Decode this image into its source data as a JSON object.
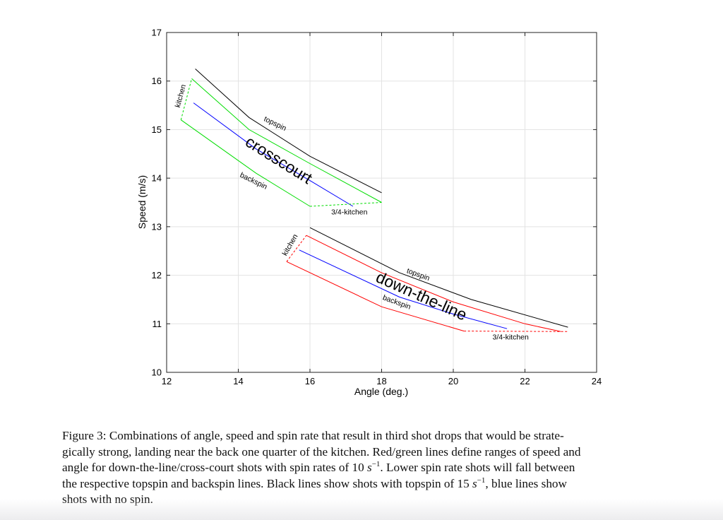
{
  "chart_data": {
    "type": "line",
    "title": "",
    "xlabel": "Angle (deg.)",
    "ylabel": "Speed (m/s)",
    "xlim": [
      12,
      24
    ],
    "ylim": [
      10,
      17
    ],
    "xticks": [
      12,
      14,
      16,
      18,
      20,
      22,
      24
    ],
    "yticks": [
      10,
      11,
      12,
      13,
      14,
      15,
      16,
      17
    ],
    "grid": true,
    "colors": {
      "topspin": "#000000",
      "no_spin": "#0000ff",
      "crosscourt": "#00dd00",
      "down_the_line": "#ff0000",
      "grid": "#e3e3e3"
    },
    "region_labels": {
      "crosscourt": "crosscourt",
      "down_the_line": "down-the-line"
    },
    "crosscourt": {
      "topspin": [
        [
          12.8,
          16.25
        ],
        [
          14.3,
          15.25
        ],
        [
          16.0,
          14.45
        ],
        [
          18.0,
          13.7
        ]
      ],
      "green_top": [
        [
          12.7,
          16.05
        ],
        [
          14.3,
          15.0
        ],
        [
          16.0,
          14.3
        ],
        [
          18.0,
          13.5
        ]
      ],
      "no_spin": [
        [
          12.75,
          15.55
        ],
        [
          14.5,
          14.6
        ],
        [
          16.0,
          13.95
        ],
        [
          17.2,
          13.42
        ]
      ],
      "backspin": [
        [
          12.4,
          15.2
        ],
        [
          14.5,
          14.1
        ],
        [
          16.0,
          13.42
        ]
      ],
      "kitchen_edge": [
        [
          12.4,
          15.2
        ],
        [
          12.7,
          16.05
        ]
      ],
      "three_quarter_edge": [
        [
          16.0,
          13.42
        ],
        [
          18.0,
          13.5
        ]
      ]
    },
    "down_the_line": {
      "topspin": [
        [
          16.0,
          12.98
        ],
        [
          18.5,
          12.05
        ],
        [
          20.5,
          11.5
        ],
        [
          23.2,
          10.93
        ]
      ],
      "red_top": [
        [
          15.9,
          12.82
        ],
        [
          18.0,
          12.05
        ],
        [
          20.0,
          11.45
        ],
        [
          22.0,
          11.0
        ],
        [
          23.0,
          10.84
        ]
      ],
      "no_spin": [
        [
          15.7,
          12.52
        ],
        [
          18.5,
          11.55
        ],
        [
          20.0,
          11.2
        ],
        [
          21.5,
          10.9
        ]
      ],
      "backspin": [
        [
          15.35,
          12.28
        ],
        [
          18.0,
          11.35
        ],
        [
          20.3,
          10.85
        ]
      ],
      "kitchen_edge": [
        [
          15.35,
          12.28
        ],
        [
          15.9,
          12.82
        ]
      ],
      "three_quarter_edge": [
        [
          20.3,
          10.85
        ],
        [
          23.2,
          10.84
        ]
      ]
    },
    "annotations": [
      {
        "text": "topspin",
        "x": 15.0,
        "y": 15.08,
        "rotate": 26
      },
      {
        "text": "backspin",
        "x": 14.4,
        "y": 13.9,
        "rotate": 26
      },
      {
        "text": "kitchen",
        "x": 12.45,
        "y": 15.68,
        "rotate": -75
      },
      {
        "text": "3/4-kitchen",
        "x": 17.1,
        "y": 13.25,
        "rotate": 0
      },
      {
        "text": "topspin",
        "x": 19.0,
        "y": 11.97,
        "rotate": 20
      },
      {
        "text": "backspin",
        "x": 18.4,
        "y": 11.4,
        "rotate": 20
      },
      {
        "text": "kitchen",
        "x": 15.5,
        "y": 12.6,
        "rotate": -60
      },
      {
        "text": "3/4-kitchen",
        "x": 21.6,
        "y": 10.68,
        "rotate": 0
      }
    ]
  },
  "caption": {
    "lines": [
      "Figure 3: Combinations of angle, speed and spin rate that result in third shot drops that would be strate-",
      "gically strong, landing near the back one quarter of the kitchen. Red/green lines define ranges of speed and",
      "angle for down-the-line/cross-court shots with spin rates of 10 ",
      "the respective topspin and backspin lines. Black lines show shots with topspin of 15 ",
      "shots with no spin."
    ],
    "line3_tail": ". Lower spin rate shots will fall between",
    "line4_tail": ", blue lines show",
    "unit_var": "s",
    "unit_exp": "−1"
  }
}
